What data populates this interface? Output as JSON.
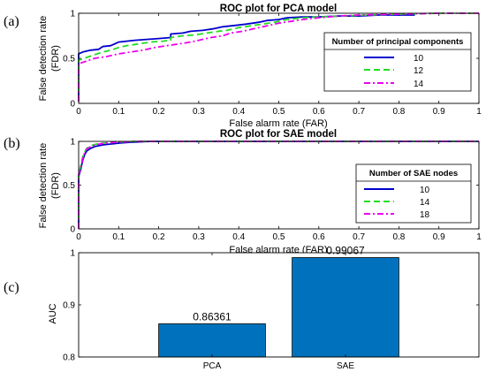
{
  "panel_labels": [
    "(a)",
    "(b)",
    "(c)"
  ],
  "chart_data": [
    {
      "type": "line",
      "title": "ROC plot for PCA model",
      "xlabel": "False alarm rate (FAR)",
      "ylabel_lines": [
        "False detection rate",
        "(FDR)"
      ],
      "xlim": [
        0,
        1
      ],
      "ylim": [
        0,
        1
      ],
      "xticks": [
        0,
        0.1,
        0.2,
        0.3,
        0.4,
        0.5,
        0.6,
        0.7,
        0.8,
        0.9,
        1
      ],
      "yticks": [
        0,
        0.5,
        1
      ],
      "grid": false,
      "legend_title": "Number of principal components",
      "legend_position": "center-right",
      "series": [
        {
          "name": "10",
          "color": "#0000cc",
          "dash": "solid",
          "points": [
            [
              0,
              0.02
            ],
            [
              0,
              0.55
            ],
            [
              0.01,
              0.57
            ],
            [
              0.03,
              0.59
            ],
            [
              0.05,
              0.6
            ],
            [
              0.06,
              0.63
            ],
            [
              0.08,
              0.64
            ],
            [
              0.09,
              0.66
            ],
            [
              0.1,
              0.68
            ],
            [
              0.12,
              0.69
            ],
            [
              0.14,
              0.7
            ],
            [
              0.17,
              0.71
            ],
            [
              0.2,
              0.72
            ],
            [
              0.23,
              0.73
            ],
            [
              0.23,
              0.77
            ],
            [
              0.26,
              0.78
            ],
            [
              0.28,
              0.8
            ],
            [
              0.31,
              0.81
            ],
            [
              0.34,
              0.83
            ],
            [
              0.36,
              0.85
            ],
            [
              0.38,
              0.86
            ],
            [
              0.4,
              0.87
            ],
            [
              0.42,
              0.88
            ],
            [
              0.45,
              0.9
            ],
            [
              0.47,
              0.92
            ],
            [
              0.5,
              0.93
            ],
            [
              0.52,
              0.95
            ],
            [
              0.56,
              0.96
            ],
            [
              0.6,
              0.96
            ],
            [
              0.65,
              0.97
            ],
            [
              0.7,
              0.97
            ],
            [
              0.75,
              0.98
            ],
            [
              0.84,
              0.98
            ]
          ]
        },
        {
          "name": "12",
          "color": "#22dd22",
          "dash": "dashed",
          "points": [
            [
              0,
              0.02
            ],
            [
              0,
              0.48
            ],
            [
              0.02,
              0.51
            ],
            [
              0.04,
              0.54
            ],
            [
              0.06,
              0.57
            ],
            [
              0.08,
              0.59
            ],
            [
              0.1,
              0.62
            ],
            [
              0.12,
              0.64
            ],
            [
              0.15,
              0.66
            ],
            [
              0.18,
              0.68
            ],
            [
              0.21,
              0.69
            ],
            [
              0.23,
              0.7
            ],
            [
              0.23,
              0.73
            ],
            [
              0.26,
              0.75
            ],
            [
              0.29,
              0.76
            ],
            [
              0.32,
              0.78
            ],
            [
              0.35,
              0.8
            ],
            [
              0.37,
              0.81
            ],
            [
              0.4,
              0.84
            ],
            [
              0.43,
              0.86
            ],
            [
              0.46,
              0.88
            ],
            [
              0.49,
              0.9
            ],
            [
              0.52,
              0.93
            ],
            [
              0.56,
              0.95
            ],
            [
              0.6,
              0.96
            ],
            [
              0.66,
              0.97
            ],
            [
              0.72,
              0.98
            ],
            [
              0.8,
              0.99
            ],
            [
              0.9,
              1.0
            ],
            [
              1,
              1.0
            ]
          ]
        },
        {
          "name": "14",
          "color": "#ee00ee",
          "dash": "dashdot",
          "points": [
            [
              0,
              0.02
            ],
            [
              0,
              0.44
            ],
            [
              0.02,
              0.47
            ],
            [
              0.04,
              0.5
            ],
            [
              0.07,
              0.52
            ],
            [
              0.1,
              0.55
            ],
            [
              0.13,
              0.57
            ],
            [
              0.16,
              0.59
            ],
            [
              0.19,
              0.62
            ],
            [
              0.22,
              0.64
            ],
            [
              0.25,
              0.66
            ],
            [
              0.28,
              0.68
            ],
            [
              0.3,
              0.7
            ],
            [
              0.33,
              0.73
            ],
            [
              0.36,
              0.75
            ],
            [
              0.38,
              0.78
            ],
            [
              0.41,
              0.8
            ],
            [
              0.44,
              0.83
            ],
            [
              0.47,
              0.86
            ],
            [
              0.5,
              0.89
            ],
            [
              0.53,
              0.91
            ],
            [
              0.56,
              0.93
            ],
            [
              0.6,
              0.95
            ],
            [
              0.65,
              0.97
            ],
            [
              0.7,
              0.98
            ],
            [
              0.8,
              0.99
            ],
            [
              0.9,
              1.0
            ],
            [
              1,
              1.0
            ]
          ]
        }
      ]
    },
    {
      "type": "line",
      "title": "ROC plot for SAE model",
      "xlabel": "False alarm rate (FAR)",
      "ylabel_lines": [
        "False detection rate",
        "(FDR)"
      ],
      "xlim": [
        0,
        1
      ],
      "ylim": [
        0,
        1
      ],
      "xticks": [
        0,
        0.1,
        0.2,
        0.3,
        0.4,
        0.5,
        0.6,
        0.7,
        0.8,
        0.9,
        1
      ],
      "yticks": [
        0,
        0.5,
        1
      ],
      "grid": false,
      "legend_title": "Number of SAE nodes",
      "legend_position": "center-right",
      "series": [
        {
          "name": "10",
          "color": "#0000cc",
          "dash": "solid",
          "points": [
            [
              0,
              0.0
            ],
            [
              0,
              0.6
            ],
            [
              0.005,
              0.68
            ],
            [
              0.01,
              0.78
            ],
            [
              0.015,
              0.85
            ],
            [
              0.02,
              0.89
            ],
            [
              0.03,
              0.92
            ],
            [
              0.04,
              0.94
            ],
            [
              0.06,
              0.96
            ],
            [
              0.08,
              0.97
            ],
            [
              0.1,
              0.98
            ],
            [
              0.13,
              0.99
            ],
            [
              0.18,
              1.0
            ],
            [
              1,
              1.0
            ]
          ]
        },
        {
          "name": "14",
          "color": "#22dd22",
          "dash": "dashed",
          "points": [
            [
              0,
              0.0
            ],
            [
              0,
              0.63
            ],
            [
              0.005,
              0.72
            ],
            [
              0.01,
              0.82
            ],
            [
              0.015,
              0.88
            ],
            [
              0.02,
              0.92
            ],
            [
              0.03,
              0.95
            ],
            [
              0.045,
              0.97
            ],
            [
              0.06,
              0.98
            ],
            [
              0.09,
              0.99
            ],
            [
              0.14,
              1.0
            ],
            [
              1,
              1.0
            ]
          ]
        },
        {
          "name": "18",
          "color": "#ee00ee",
          "dash": "dashdot",
          "points": [
            [
              0,
              0.0
            ],
            [
              0,
              0.62
            ],
            [
              0.005,
              0.7
            ],
            [
              0.01,
              0.8
            ],
            [
              0.015,
              0.87
            ],
            [
              0.02,
              0.91
            ],
            [
              0.03,
              0.94
            ],
            [
              0.045,
              0.965
            ],
            [
              0.06,
              0.975
            ],
            [
              0.09,
              0.99
            ],
            [
              0.15,
              1.0
            ],
            [
              1,
              1.0
            ]
          ]
        }
      ]
    },
    {
      "type": "bar",
      "categories": [
        "PCA",
        "SAE"
      ],
      "values": [
        0.86361,
        0.99067
      ],
      "data_labels": [
        "0.86361",
        "0.99067"
      ],
      "ylabel": "AUC",
      "ylim": [
        0.8,
        1
      ],
      "yticks": [
        0.8,
        0.9,
        1
      ],
      "yticklabels": [
        "0.8",
        "0.9",
        "1"
      ],
      "bar_color": "#0072bd",
      "grid": false
    }
  ]
}
